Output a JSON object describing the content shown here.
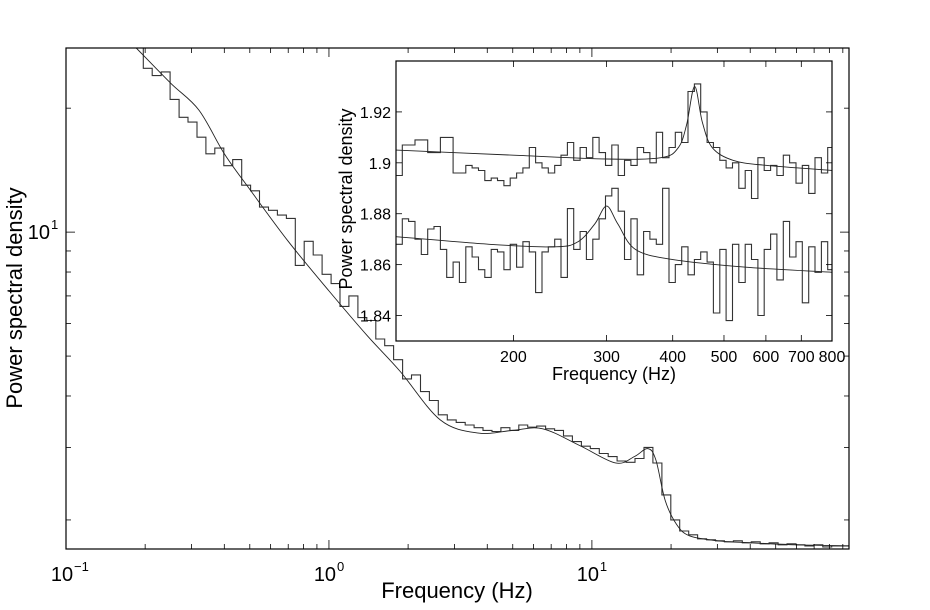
{
  "chart_data": [
    {
      "type": "line",
      "title": "",
      "xlabel": "Frequency (Hz)",
      "ylabel": "Power spectral density",
      "xscale": "log",
      "yscale": "log",
      "xlim": [
        0.1,
        95
      ],
      "ylim": [
        1.7,
        28
      ],
      "xticks": [
        {
          "base": "10",
          "exp": "-1",
          "value": 0.1
        },
        {
          "base": "10",
          "exp": "0",
          "value": 1
        },
        {
          "base": "10",
          "exp": "1",
          "value": 10
        }
      ],
      "yticks": [
        {
          "base": "10",
          "exp": "1",
          "value": 10
        }
      ],
      "series": [
        {
          "name": "histogram",
          "kind": "step",
          "bin_log10_start": -0.74,
          "bin_log10_width": 0.034,
          "values": [
            30,
            25,
            24,
            24.5,
            21,
            19,
            18.5,
            17,
            15.5,
            16,
            14.5,
            15,
            13,
            12.6,
            11.5,
            11.3,
            11,
            10.8,
            8.3,
            9.5,
            8.8,
            7.9,
            7.5,
            6.6,
            7.0,
            6.2,
            6.1,
            5.5,
            5.3,
            4.9,
            4.4,
            4.5,
            4.1,
            3.9,
            3.6,
            3.5,
            3.45,
            3.4,
            3.35,
            3.3,
            3.28,
            3.35,
            3.3,
            3.4,
            3.36,
            3.38,
            3.33,
            3.3,
            3.2,
            3.1,
            3.02,
            2.98,
            2.9,
            2.85,
            2.78,
            2.76,
            2.82,
            3.0,
            2.75,
            2.3,
            2.0,
            1.88,
            1.84,
            1.8,
            1.79,
            1.78,
            1.77,
            1.78,
            1.76,
            1.77,
            1.75,
            1.76,
            1.74,
            1.75,
            1.74,
            1.73,
            1.74,
            1.72,
            1.73,
            1.73
          ]
        },
        {
          "name": "fit",
          "kind": "line",
          "points": [
            [
              0.185,
              28
            ],
            [
              0.25,
              23
            ],
            [
              0.32,
              19.8
            ],
            [
              0.4,
              15.5
            ],
            [
              0.5,
              12.7
            ],
            [
              0.7,
              9.5
            ],
            [
              1.0,
              7.2
            ],
            [
              1.4,
              5.6
            ],
            [
              1.86,
              4.6
            ],
            [
              2.65,
              3.5
            ],
            [
              3.7,
              3.25
            ],
            [
              5.0,
              3.3
            ],
            [
              6.5,
              3.33
            ],
            [
              9.0,
              3.03
            ],
            [
              12.3,
              2.75
            ],
            [
              14.5,
              2.85
            ],
            [
              16.3,
              2.98
            ],
            [
              17.5,
              2.8
            ],
            [
              19,
              2.23
            ],
            [
              21,
              1.95
            ],
            [
              23.5,
              1.83
            ],
            [
              30,
              1.78
            ],
            [
              40,
              1.76
            ],
            [
              60,
              1.74
            ],
            [
              95,
              1.73
            ]
          ]
        }
      ]
    },
    {
      "type": "line",
      "title": "",
      "placement": "inset top-right",
      "xlabel": "Frequency (Hz)",
      "ylabel": "Power spectral density",
      "xscale": "log",
      "yscale": "linear",
      "xlim": [
        120,
        800
      ],
      "ylim": [
        1.83,
        1.94
      ],
      "xticks": [
        {
          "label": "200",
          "value": 200
        },
        {
          "label": "300",
          "value": 300
        },
        {
          "label": "400",
          "value": 400
        },
        {
          "label": "500",
          "value": 500
        },
        {
          "label": "600",
          "value": 600
        },
        {
          "label": "700",
          "value": 700
        },
        {
          "label": "800",
          "value": 800
        }
      ],
      "yticks": [
        {
          "label": "1.84",
          "value": 1.84
        },
        {
          "label": "1.86",
          "value": 1.86
        },
        {
          "label": "1.88",
          "value": 1.88
        },
        {
          "label": "1.9",
          "value": 1.9
        },
        {
          "label": "1.92",
          "value": 1.92
        }
      ],
      "series": [
        {
          "name": "upper histogram",
          "kind": "step",
          "bin_log10_start": 2.079,
          "bin_log10_width": 0.012,
          "values": [
            1.895,
            1.907,
            1.907,
            1.909,
            1.909,
            1.904,
            1.904,
            1.91,
            1.91,
            1.896,
            1.896,
            1.899,
            1.898,
            1.897,
            1.893,
            1.894,
            1.893,
            1.891,
            1.894,
            1.896,
            1.898,
            1.906,
            1.9,
            1.898,
            1.896,
            1.899,
            1.903,
            1.908,
            1.901,
            1.906,
            1.902,
            1.91,
            1.904,
            1.899,
            1.907,
            1.895,
            1.901,
            1.899,
            1.906,
            1.904,
            1.9,
            1.912,
            1.902,
            1.906,
            1.912,
            1.908,
            1.928,
            1.931,
            1.92,
            1.908,
            1.906,
            1.901,
            1.898,
            1.9,
            1.89,
            1.897,
            1.886,
            1.902,
            1.897,
            1.899,
            1.895,
            1.903,
            1.9,
            1.892,
            1.899,
            1.888,
            1.902,
            1.896,
            1.906
          ]
        },
        {
          "name": "upper fit",
          "kind": "line",
          "points": [
            [
              120,
              1.905
            ],
            [
              200,
              1.903
            ],
            [
              300,
              1.9015
            ],
            [
              380,
              1.902
            ],
            [
              410,
              1.906
            ],
            [
              425,
              1.915
            ],
            [
              440,
              1.93
            ],
            [
              455,
              1.916
            ],
            [
              475,
              1.906
            ],
            [
              520,
              1.901
            ],
            [
              600,
              1.899
            ],
            [
              800,
              1.897
            ]
          ]
        },
        {
          "name": "lower histogram",
          "kind": "step",
          "bin_log10_start": 2.079,
          "bin_log10_width": 0.012,
          "values": [
            1.868,
            1.878,
            1.877,
            1.87,
            1.864,
            1.874,
            1.875,
            1.866,
            1.855,
            1.861,
            1.853,
            1.867,
            1.863,
            1.858,
            1.855,
            1.866,
            1.865,
            1.858,
            1.868,
            1.859,
            1.869,
            1.865,
            1.849,
            1.865,
            1.867,
            1.87,
            1.855,
            1.882,
            1.866,
            1.873,
            1.862,
            1.87,
            1.878,
            1.887,
            1.89,
            1.881,
            1.862,
            1.878,
            1.856,
            1.873,
            1.87,
            1.868,
            1.89,
            1.853,
            1.86,
            1.867,
            1.856,
            1.862,
            1.865,
            1.861,
            1.841,
            1.866,
            1.838,
            1.868,
            1.853,
            1.868,
            1.862,
            1.84,
            1.866,
            1.872,
            1.854,
            1.877,
            1.863,
            1.869,
            1.845,
            1.867,
            1.857,
            1.869,
            1.858
          ]
        },
        {
          "name": "lower fit",
          "kind": "line",
          "points": [
            [
              120,
              1.871
            ],
            [
              180,
              1.868
            ],
            [
              240,
              1.867
            ],
            [
              265,
              1.869
            ],
            [
              285,
              1.876
            ],
            [
              300,
              1.883
            ],
            [
              315,
              1.876
            ],
            [
              340,
              1.866
            ],
            [
              400,
              1.862
            ],
            [
              550,
              1.859
            ],
            [
              800,
              1.857
            ]
          ]
        }
      ]
    }
  ]
}
